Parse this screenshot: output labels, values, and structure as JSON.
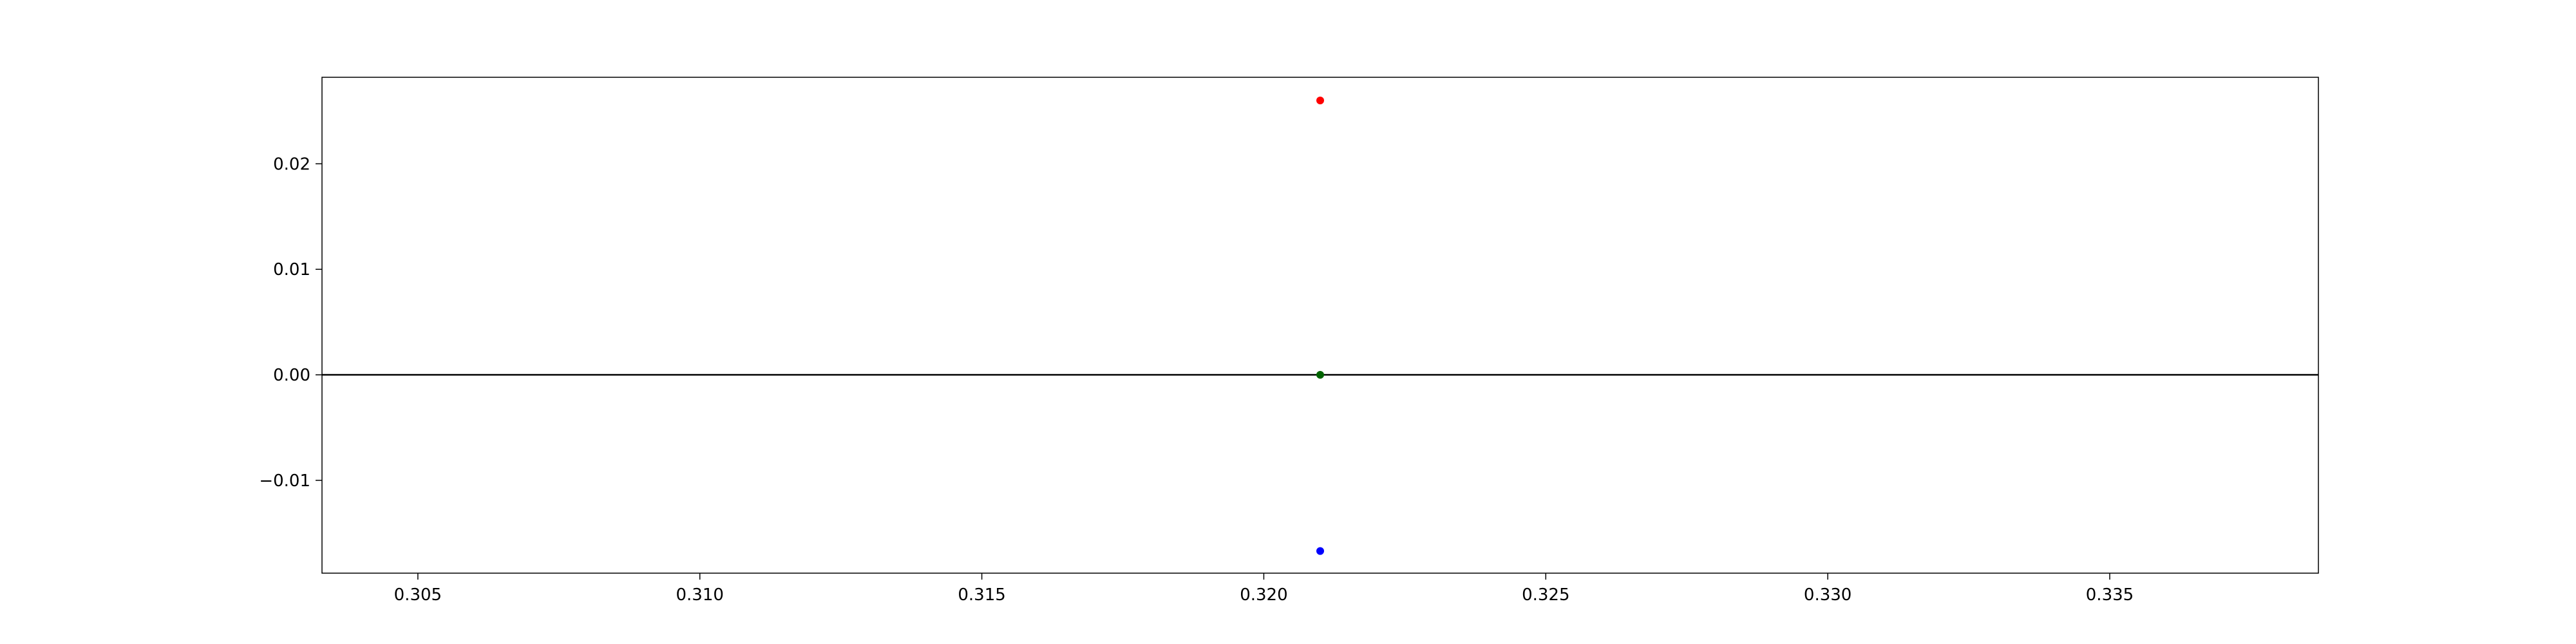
{
  "chart_data": {
    "type": "scatter",
    "title": "",
    "xlabel": "",
    "ylabel": "",
    "xlim": [
      0.3033,
      0.3387
    ],
    "ylim": [
      -0.0188,
      0.0282
    ],
    "xticks": [
      0.305,
      0.31,
      0.315,
      0.32,
      0.325,
      0.33,
      0.335
    ],
    "xtick_labels": [
      "0.305",
      "0.310",
      "0.315",
      "0.320",
      "0.325",
      "0.330",
      "0.335"
    ],
    "yticks": [
      -0.01,
      0.0,
      0.01,
      0.02
    ],
    "ytick_labels": [
      "−0.01",
      "0.00",
      "0.01",
      "0.02"
    ],
    "grid": false,
    "legend": "none",
    "reference_lines": [
      {
        "orientation": "horizontal",
        "y": 0.0,
        "color": "#000000"
      }
    ],
    "points": [
      {
        "x": 0.321,
        "y": 0.026,
        "color": "#ff0000"
      },
      {
        "x": 0.321,
        "y": 0.0,
        "color": "#006400"
      },
      {
        "x": 0.321,
        "y": -0.0167,
        "color": "#0000ff"
      }
    ]
  }
}
